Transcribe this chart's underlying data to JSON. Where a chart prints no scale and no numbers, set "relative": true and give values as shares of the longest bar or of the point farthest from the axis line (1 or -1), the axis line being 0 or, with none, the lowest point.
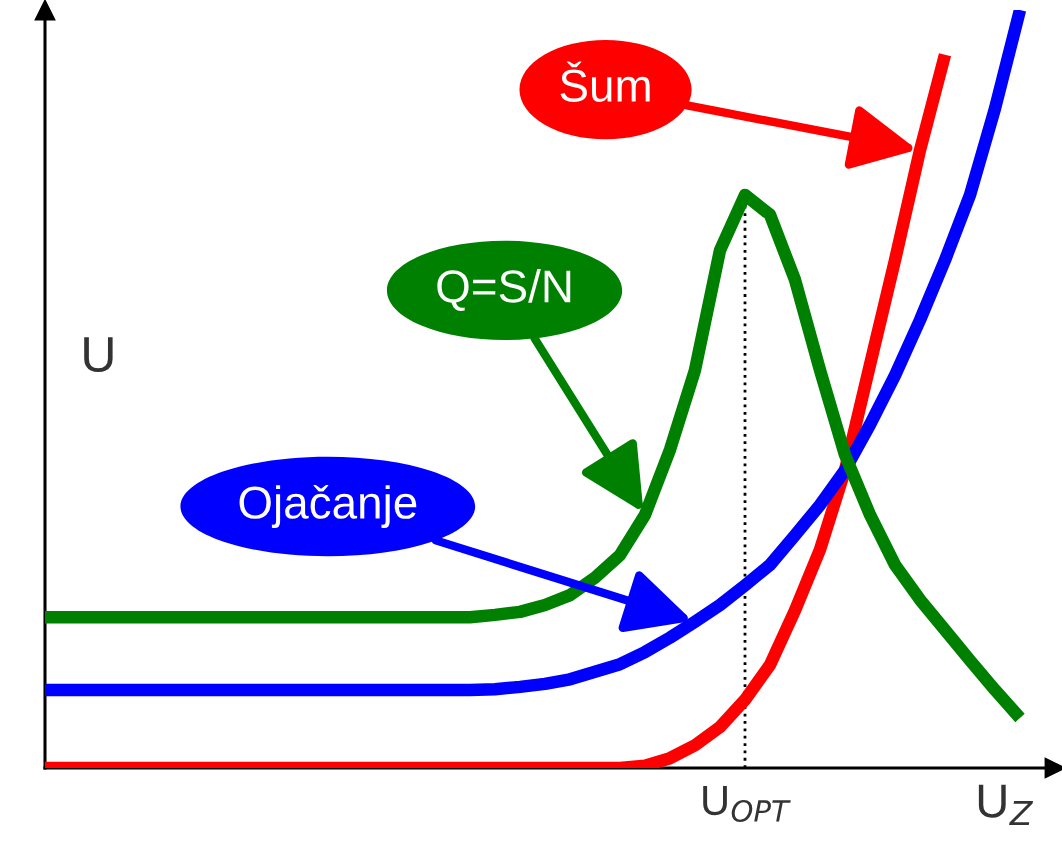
{
  "chart_data": {
    "type": "line",
    "relative": true,
    "xlabel": "U$_{Z}$",
    "ylabel": "U",
    "categories": [
      null,
      null,
      null,
      null,
      null,
      null,
      null,
      null,
      null,
      null,
      null,
      null,
      null,
      null,
      null,
      null,
      null,
      null,
      null,
      null,
      null,
      null,
      null,
      null,
      null,
      null,
      null,
      null,
      null,
      null,
      null,
      null,
      null,
      null,
      null,
      null,
      null,
      null,
      null,
      null,
      null
    ],
    "series": [
      {
        "name": "Šum",
        "color": "#ff0000",
        "values": [
          0,
          0,
          0,
          0,
          0,
          0,
          0,
          0,
          0,
          0,
          0,
          0,
          0,
          0,
          0,
          0,
          0,
          0,
          0,
          0,
          0,
          0,
          0,
          0,
          0.003,
          0.013,
          0.03,
          0.054,
          0.09,
          0.136,
          0.208,
          0.288,
          0.393,
          0.532,
          0.67,
          0.815,
          0.941,
          null,
          null,
          null,
          null
        ]
      },
      {
        "name": "Ojačanje",
        "color": "#0000ff",
        "values": [
          0.103,
          0.103,
          0.103,
          0.103,
          0.103,
          0.103,
          0.103,
          0.103,
          0.103,
          0.103,
          0.103,
          0.103,
          0.103,
          0.103,
          0.103,
          0.103,
          0.103,
          0.103,
          0.104,
          0.107,
          0.111,
          0.117,
          0.127,
          0.137,
          0.153,
          0.172,
          0.193,
          0.215,
          0.241,
          0.268,
          0.307,
          0.347,
          0.393,
          0.453,
          0.518,
          0.591,
          0.67,
          0.756,
          0.87,
          1.0,
          null
        ]
      },
      {
        "name": "Q=S/N",
        "color": "#008000",
        "values": [
          0.199,
          0.199,
          0.199,
          0.199,
          0.199,
          0.199,
          0.199,
          0.199,
          0.199,
          0.199,
          0.199,
          0.199,
          0.199,
          0.199,
          0.199,
          0.199,
          0.199,
          0.199,
          0.202,
          0.206,
          0.215,
          0.228,
          0.251,
          0.281,
          0.334,
          0.42,
          0.525,
          0.683,
          0.756,
          0.73,
          0.644,
          0.525,
          0.413,
          0.334,
          0.268,
          0.222,
          0.182,
          0.142,
          0.103,
          0.066,
          null
        ]
      }
    ],
    "annotations": [
      "U$_{OPT}$"
    ],
    "grid": false,
    "legend": false,
    "marker": "none",
    "line_style": "solid"
  }
}
